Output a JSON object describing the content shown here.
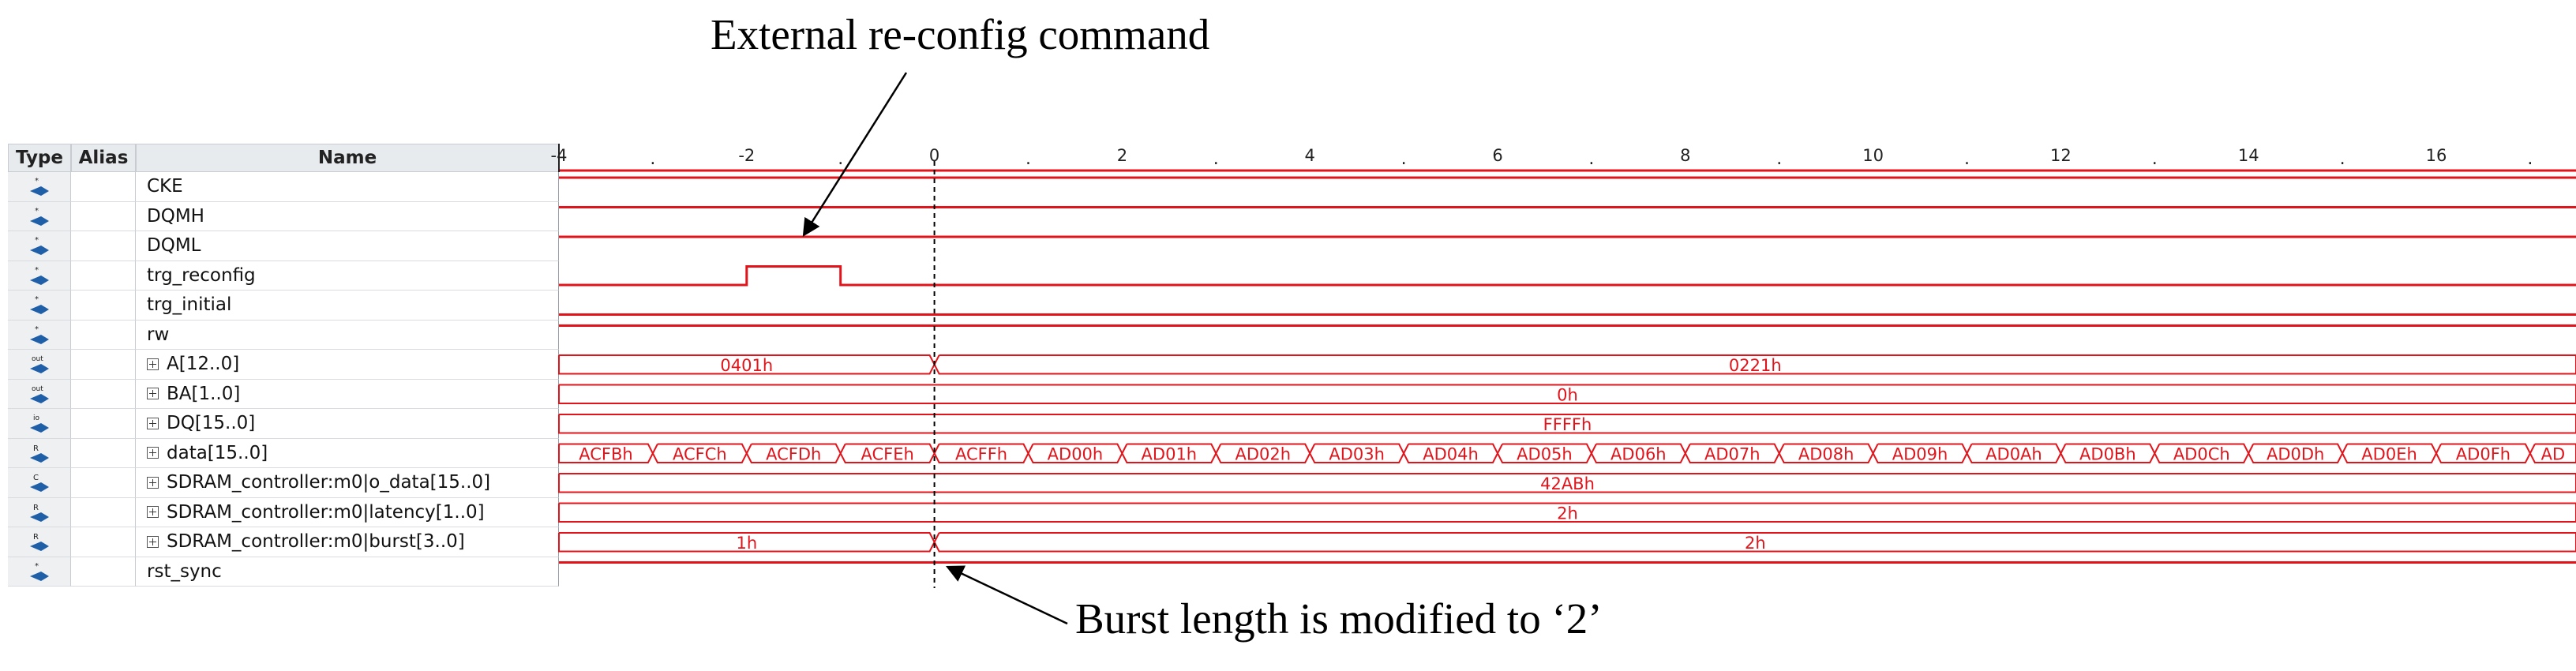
{
  "annotations": {
    "top": "External re-config command",
    "bottom": "Burst length is modified to ‘2’"
  },
  "header": {
    "type": "Type",
    "alias": "Alias",
    "name": "Name"
  },
  "timeline": {
    "min": -4,
    "max": 17.5,
    "major_ticks": [
      -4,
      -2,
      0,
      2,
      4,
      6,
      8,
      10,
      12,
      14,
      16
    ],
    "cursor": 0
  },
  "colors": {
    "wave": "#e0141a",
    "cursor": "#000000"
  },
  "signals": [
    {
      "name": "CKE",
      "icon": "input-pin-icon",
      "kind": "high"
    },
    {
      "name": "DQMH",
      "icon": "input-pin-icon",
      "kind": "high"
    },
    {
      "name": "DQML",
      "icon": "input-pin-icon",
      "kind": "high"
    },
    {
      "name": "trg_reconfig",
      "icon": "input-pin-icon",
      "kind": "pulse",
      "rise": -2,
      "fall": -1
    },
    {
      "name": "trg_initial",
      "icon": "input-pin-icon",
      "kind": "low"
    },
    {
      "name": "rw",
      "icon": "input-pin-icon",
      "kind": "high"
    },
    {
      "name": "A[12..0]",
      "icon": "output-pin-icon",
      "kind": "bus",
      "expandable": true,
      "segments": [
        {
          "from": -4,
          "to": 0,
          "label": "0401h"
        },
        {
          "from": 0,
          "to": 17.5,
          "label": "0221h"
        }
      ]
    },
    {
      "name": "BA[1..0]",
      "icon": "output-pin-icon",
      "kind": "bus",
      "expandable": true,
      "segments": [
        {
          "from": -4,
          "to": 17.5,
          "label": "0h"
        }
      ]
    },
    {
      "name": "DQ[15..0]",
      "icon": "bidir-pin-icon",
      "kind": "bus",
      "expandable": true,
      "segments": [
        {
          "from": -4,
          "to": 17.5,
          "label": "FFFFh"
        }
      ]
    },
    {
      "name": "data[15..0]",
      "icon": "register-icon",
      "kind": "bus",
      "expandable": true,
      "segments": [
        {
          "from": -4,
          "to": -3,
          "label": "ACFBh"
        },
        {
          "from": -3,
          "to": -2,
          "label": "ACFCh"
        },
        {
          "from": -2,
          "to": -1,
          "label": "ACFDh"
        },
        {
          "from": -1,
          "to": 0,
          "label": "ACFEh"
        },
        {
          "from": 0,
          "to": 1,
          "label": "ACFFh"
        },
        {
          "from": 1,
          "to": 2,
          "label": "AD00h"
        },
        {
          "from": 2,
          "to": 3,
          "label": "AD01h"
        },
        {
          "from": 3,
          "to": 4,
          "label": "AD02h"
        },
        {
          "from": 4,
          "to": 5,
          "label": "AD03h"
        },
        {
          "from": 5,
          "to": 6,
          "label": "AD04h"
        },
        {
          "from": 6,
          "to": 7,
          "label": "AD05h"
        },
        {
          "from": 7,
          "to": 8,
          "label": "AD06h"
        },
        {
          "from": 8,
          "to": 9,
          "label": "AD07h"
        },
        {
          "from": 9,
          "to": 10,
          "label": "AD08h"
        },
        {
          "from": 10,
          "to": 11,
          "label": "AD09h"
        },
        {
          "from": 11,
          "to": 12,
          "label": "AD0Ah"
        },
        {
          "from": 12,
          "to": 13,
          "label": "AD0Bh"
        },
        {
          "from": 13,
          "to": 14,
          "label": "AD0Ch"
        },
        {
          "from": 14,
          "to": 15,
          "label": "AD0Dh"
        },
        {
          "from": 15,
          "to": 16,
          "label": "AD0Eh"
        },
        {
          "from": 16,
          "to": 17,
          "label": "AD0Fh"
        },
        {
          "from": 17,
          "to": 17.5,
          "label": "AD"
        }
      ]
    },
    {
      "name": "SDRAM_controller:m0|o_data[15..0]",
      "icon": "combinational-icon",
      "kind": "bus",
      "expandable": true,
      "segments": [
        {
          "from": -4,
          "to": 17.5,
          "label": "42ABh"
        }
      ]
    },
    {
      "name": "SDRAM_controller:m0|latency[1..0]",
      "icon": "register-icon",
      "kind": "bus",
      "expandable": true,
      "segments": [
        {
          "from": -4,
          "to": 17.5,
          "label": "2h"
        }
      ]
    },
    {
      "name": "SDRAM_controller:m0|burst[3..0]",
      "icon": "register-icon",
      "kind": "bus",
      "expandable": true,
      "segments": [
        {
          "from": -4,
          "to": 0,
          "label": "1h"
        },
        {
          "from": 0,
          "to": 17.5,
          "label": "2h"
        }
      ]
    },
    {
      "name": "rst_sync",
      "icon": "input-pin-icon",
      "kind": "high"
    }
  ]
}
